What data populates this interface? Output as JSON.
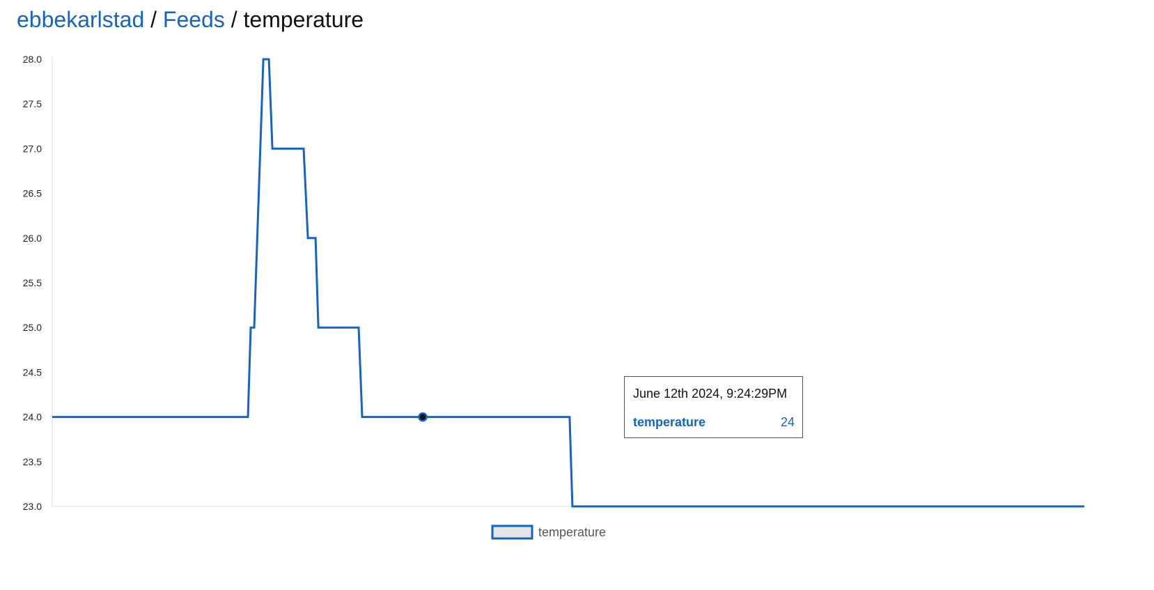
{
  "breadcrumb": {
    "user": "ebbekarlstad",
    "sep1": "/",
    "feeds": "Feeds",
    "sep2": "/",
    "current": "temperature"
  },
  "colors": {
    "line": "#1565c0",
    "axis": "#dddddd",
    "marker_fill": "#111111",
    "legend_fill": "#e6e6e6"
  },
  "chart_data": {
    "type": "line",
    "title": "",
    "xlabel": "",
    "ylabel": "",
    "ylim": [
      23.0,
      28.0
    ],
    "yticks": [
      "28.0",
      "27.5",
      "27.0",
      "26.5",
      "26.0",
      "25.5",
      "25.0",
      "24.5",
      "24.0",
      "23.5",
      "23.0"
    ],
    "grid": false,
    "legend_position": "bottom-center",
    "series": [
      {
        "name": "temperature",
        "values": [
          24,
          24,
          25,
          25,
          28,
          28,
          27,
          27,
          26,
          26,
          25,
          25,
          24,
          24,
          24,
          23,
          23
        ]
      }
    ],
    "highlighted_index": 13
  },
  "tooltip": {
    "date": "June 12th 2024, 9:24:29PM",
    "series": "temperature",
    "value": "24"
  },
  "legend": {
    "label": "temperature"
  }
}
